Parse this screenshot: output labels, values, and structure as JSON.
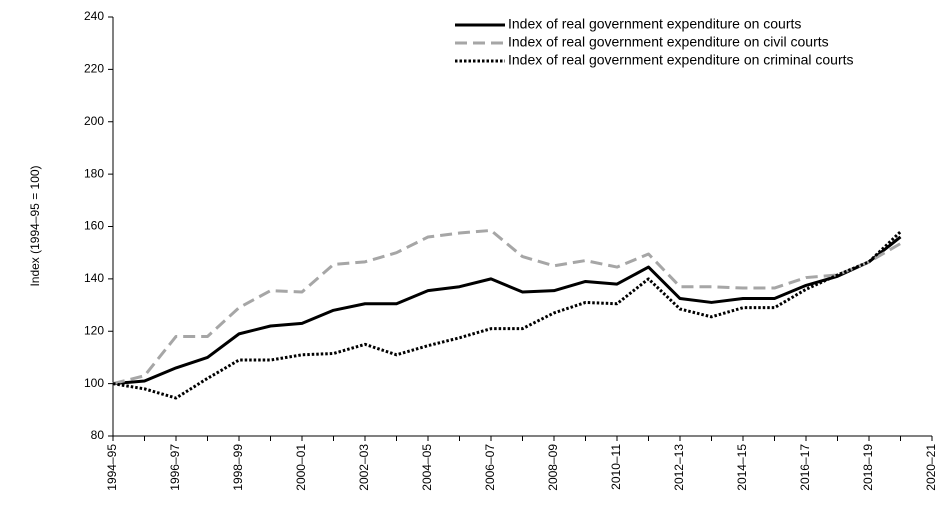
{
  "chart_data": {
    "type": "line",
    "y_label": "Index (1994–95 = 100)",
    "categories": [
      "1994–95",
      null,
      "1996–97",
      null,
      "1998–99",
      null,
      "2000–01",
      null,
      "2002–03",
      null,
      "2004–05",
      null,
      "2006–07",
      null,
      "2008–09",
      null,
      "2010–11",
      null,
      "2012–13",
      null,
      "2014–15",
      null,
      "2016–17",
      null,
      "2018–19",
      null,
      "2020–21"
    ],
    "series": [
      {
        "name": "Index of real government expenditure on courts",
        "color": "#000000",
        "style": "solid",
        "values": [
          100,
          101,
          106,
          110,
          119,
          122,
          123,
          128,
          130.5,
          130.5,
          135.5,
          137,
          140,
          135,
          135.5,
          139,
          138,
          144.5,
          132.5,
          131,
          132.5,
          132.5,
          137.5,
          141,
          146.5,
          156,
          null
        ]
      },
      {
        "name": "Index of real government expenditure on civil courts",
        "color": "#a6a6a6",
        "style": "dashed",
        "values": [
          100,
          103,
          118,
          118,
          129,
          135.5,
          135,
          145.5,
          146.5,
          150,
          156,
          157.5,
          158.5,
          148.5,
          145,
          147,
          144.5,
          149.5,
          137,
          137,
          136.5,
          136.5,
          140.5,
          141.5,
          146.5,
          153.5,
          null
        ]
      },
      {
        "name": "Index of real government expenditure on criminal courts",
        "color": "#000000",
        "style": "dotted",
        "values": [
          100,
          98,
          94.5,
          102,
          109,
          109,
          111,
          111.5,
          115,
          111,
          114.5,
          117.5,
          121,
          121,
          127,
          131,
          130.5,
          140,
          128.5,
          125.5,
          129,
          129,
          136,
          141.5,
          146.5,
          158,
          null
        ]
      }
    ],
    "ylim": [
      80,
      240
    ],
    "yticks": [
      80,
      100,
      120,
      140,
      160,
      180,
      200,
      220,
      240
    ],
    "grid": false,
    "legend": "upper right"
  }
}
